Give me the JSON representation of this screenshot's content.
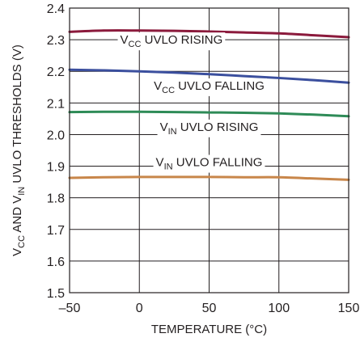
{
  "chart_data": {
    "type": "line",
    "xlabel": "TEMPERATURE (°C)",
    "ylabel": {
      "parts": [
        {
          "t": "V"
        },
        {
          "t": "CC",
          "sub": true
        },
        {
          "t": " AND V"
        },
        {
          "t": "IN",
          "sub": true
        },
        {
          "t": " UVLO THRESHOLDS (V)"
        }
      ]
    },
    "xlim": [
      -50,
      150
    ],
    "ylim": [
      1.5,
      2.4
    ],
    "x_ticks": [
      -50,
      0,
      50,
      100,
      150
    ],
    "x_tick_labels": [
      "–50",
      "0",
      "50",
      "100",
      "150"
    ],
    "y_ticks": [
      1.5,
      1.6,
      1.7,
      1.8,
      1.9,
      2.0,
      2.1,
      2.2,
      2.3,
      2.4
    ],
    "y_tick_labels": [
      "1.5",
      "1.6",
      "1.7",
      "1.8",
      "1.9",
      "2.0",
      "2.1",
      "2.2",
      "2.3",
      "2.4"
    ],
    "grid": true,
    "series": [
      {
        "key": "vcc-rising",
        "color": "#8b1a3c",
        "label": [
          {
            "t": "V"
          },
          {
            "t": "CC",
            "sub": true
          },
          {
            "t": " UVLO RISING"
          }
        ],
        "label_anchor": [
          23,
          2.287
        ],
        "leader_x": 100,
        "x": [
          -50,
          -25,
          0,
          25,
          50,
          75,
          100,
          125,
          150
        ],
        "y": [
          2.325,
          2.329,
          2.329,
          2.328,
          2.326,
          2.323,
          2.32,
          2.314,
          2.308
        ]
      },
      {
        "key": "vcc-falling",
        "color": "#3b4f9e",
        "label": [
          {
            "t": "V"
          },
          {
            "t": "CC",
            "sub": true
          },
          {
            "t": " UVLO FALLING"
          }
        ],
        "label_anchor": [
          50,
          2.142
        ],
        "leader_x": 50,
        "x": [
          -50,
          -25,
          0,
          25,
          50,
          75,
          100,
          125,
          150
        ],
        "y": [
          2.205,
          2.203,
          2.2,
          2.196,
          2.191,
          2.185,
          2.179,
          2.172,
          2.164
        ]
      },
      {
        "key": "vin-rising",
        "color": "#2e8b57",
        "label": [
          {
            "t": "V"
          },
          {
            "t": "IN",
            "sub": true
          },
          {
            "t": " UVLO RISING"
          }
        ],
        "label_anchor": [
          50,
          2.012
        ],
        "leader_x": 50,
        "x": [
          -50,
          -25,
          0,
          25,
          50,
          75,
          100,
          125,
          150
        ],
        "y": [
          2.071,
          2.072,
          2.072,
          2.071,
          2.07,
          2.069,
          2.067,
          2.063,
          2.058
        ]
      },
      {
        "key": "vin-falling",
        "color": "#c8864a",
        "label": [
          {
            "t": "V"
          },
          {
            "t": "IN",
            "sub": true
          },
          {
            "t": " UVLO FALLING"
          }
        ],
        "label_anchor": [
          50,
          1.9
        ],
        "leader_x": 50,
        "x": [
          -50,
          -25,
          0,
          25,
          50,
          75,
          100,
          125,
          150
        ],
        "y": [
          1.863,
          1.865,
          1.866,
          1.866,
          1.866,
          1.865,
          1.865,
          1.861,
          1.857
        ]
      }
    ]
  }
}
